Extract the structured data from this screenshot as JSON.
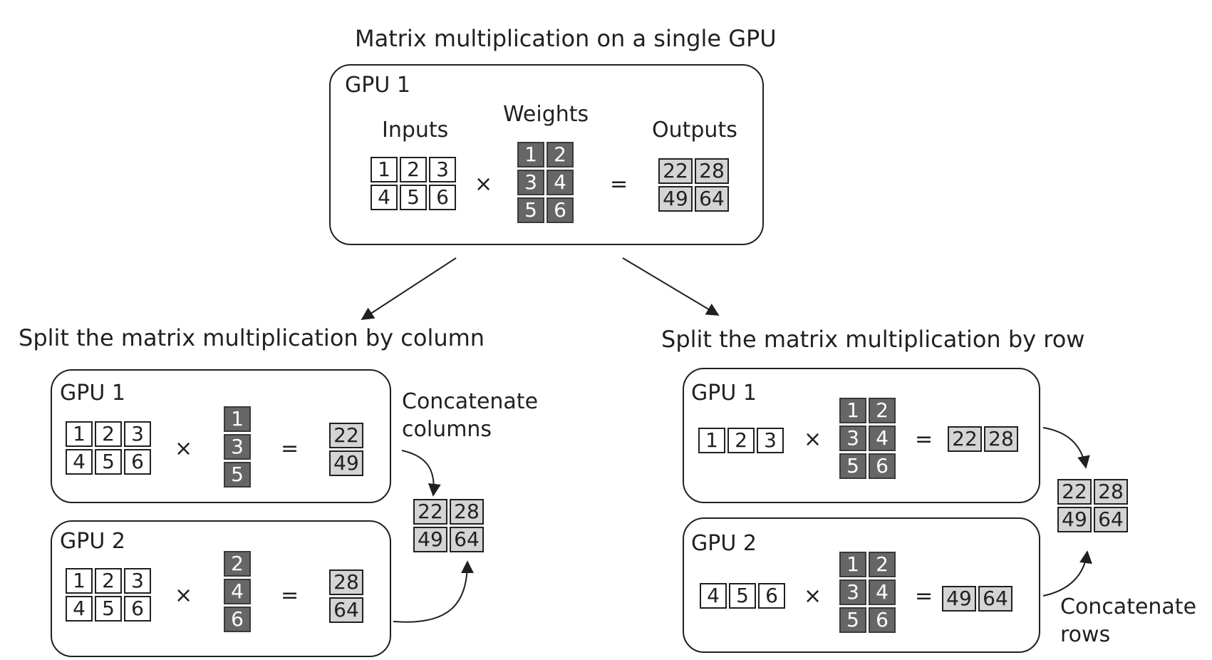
{
  "colors": {
    "ink": "#231f20",
    "input_fill": "#ffffff",
    "weight_fill": "#666666",
    "weight_text": "#ffffff",
    "output_fill": "#d4d4d4"
  },
  "symbols": {
    "times": "×",
    "equals": "="
  },
  "top": {
    "title": "Matrix multiplication on a single GPU",
    "gpu_label": "GPU 1",
    "inputs_label": "Inputs",
    "weights_label": "Weights",
    "outputs_label": "Outputs",
    "inputs": [
      [
        "1",
        "2",
        "3"
      ],
      [
        "4",
        "5",
        "6"
      ]
    ],
    "weights": [
      [
        "1",
        "2"
      ],
      [
        "3",
        "4"
      ],
      [
        "5",
        "6"
      ]
    ],
    "outputs": [
      [
        "22",
        "28"
      ],
      [
        "49",
        "64"
      ]
    ]
  },
  "column_split": {
    "title": "Split the matrix multiplication by column",
    "caption_line1": "Concatenate",
    "caption_line2": "columns",
    "gpu1": {
      "label": "GPU 1",
      "inputs": [
        [
          "1",
          "2",
          "3"
        ],
        [
          "4",
          "5",
          "6"
        ]
      ],
      "weights": [
        [
          "1"
        ],
        [
          "3"
        ],
        [
          "5"
        ]
      ],
      "outputs": [
        [
          "22"
        ],
        [
          "49"
        ]
      ]
    },
    "gpu2": {
      "label": "GPU 2",
      "inputs": [
        [
          "1",
          "2",
          "3"
        ],
        [
          "4",
          "5",
          "6"
        ]
      ],
      "weights": [
        [
          "2"
        ],
        [
          "4"
        ],
        [
          "6"
        ]
      ],
      "outputs": [
        [
          "28"
        ],
        [
          "64"
        ]
      ]
    },
    "result": [
      [
        "22",
        "28"
      ],
      [
        "49",
        "64"
      ]
    ]
  },
  "row_split": {
    "title": "Split the matrix multiplication by row",
    "caption_line1": "Concatenate",
    "caption_line2": "rows",
    "gpu1": {
      "label": "GPU 1",
      "inputs": [
        [
          "1",
          "2",
          "3"
        ]
      ],
      "weights": [
        [
          "1",
          "2"
        ],
        [
          "3",
          "4"
        ],
        [
          "5",
          "6"
        ]
      ],
      "outputs": [
        [
          "22",
          "28"
        ]
      ]
    },
    "gpu2": {
      "label": "GPU 2",
      "inputs": [
        [
          "4",
          "5",
          "6"
        ]
      ],
      "weights": [
        [
          "1",
          "2"
        ],
        [
          "3",
          "4"
        ],
        [
          "5",
          "6"
        ]
      ],
      "outputs": [
        [
          "49",
          "64"
        ]
      ]
    },
    "result": [
      [
        "22",
        "28"
      ],
      [
        "49",
        "64"
      ]
    ]
  }
}
